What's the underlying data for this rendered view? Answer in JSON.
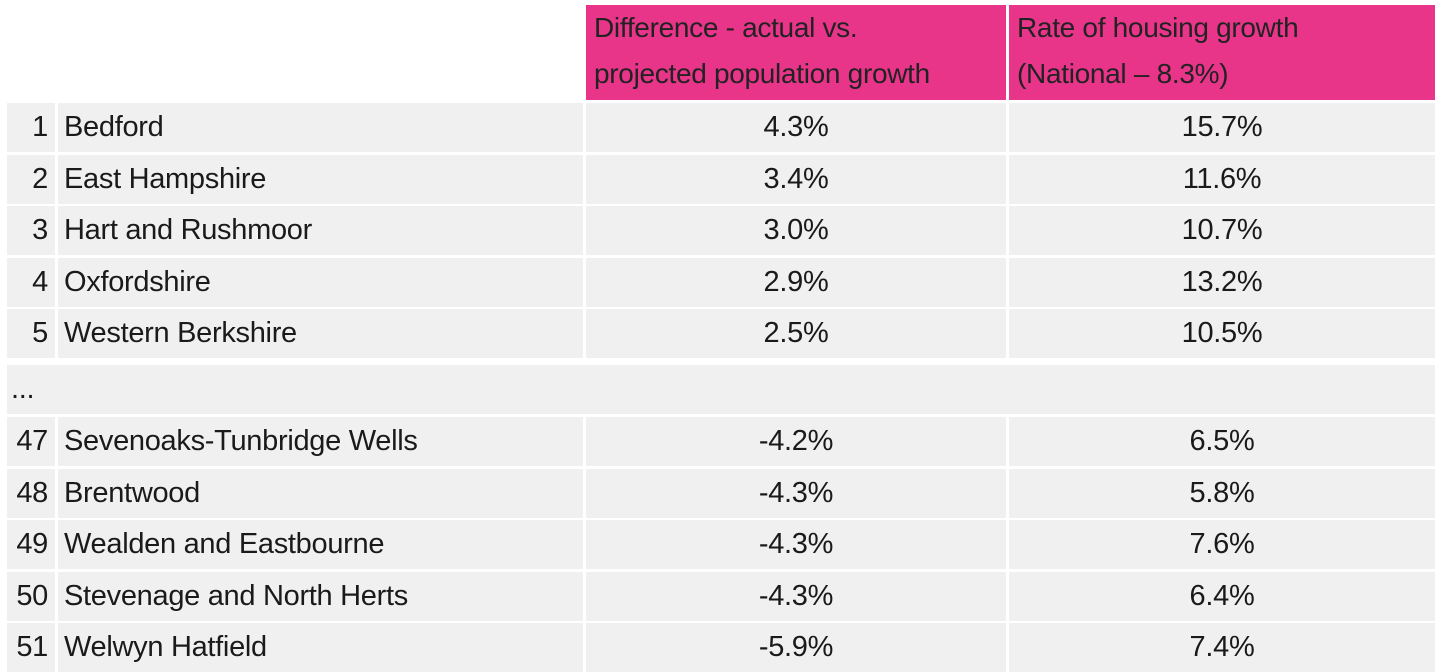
{
  "headers": {
    "difference_line1": "Difference - actual vs.",
    "difference_line2": "projected population growth",
    "rate_line1": "Rate of housing growth",
    "rate_line2": "(National – 8.3%)"
  },
  "rows_top": [
    {
      "rank": "1",
      "name": "Bedford",
      "difference": "4.3%",
      "rate": "15.7%"
    },
    {
      "rank": "2",
      "name": "East Hampshire",
      "difference": "3.4%",
      "rate": "11.6%"
    },
    {
      "rank": "3",
      "name": "Hart and Rushmoor",
      "difference": "3.0%",
      "rate": "10.7%"
    },
    {
      "rank": "4",
      "name": "Oxfordshire",
      "difference": "2.9%",
      "rate": "13.2%"
    },
    {
      "rank": "5",
      "name": "Western Berkshire",
      "difference": "2.5%",
      "rate": "10.5%"
    }
  ],
  "ellipsis": "...",
  "rows_bottom": [
    {
      "rank": "47",
      "name": "Sevenoaks-Tunbridge Wells",
      "difference": "-4.2%",
      "rate": "6.5%"
    },
    {
      "rank": "48",
      "name": "Brentwood",
      "difference": "-4.3%",
      "rate": "5.8%"
    },
    {
      "rank": "49",
      "name": "Wealden and Eastbourne",
      "difference": "-4.3%",
      "rate": "7.6%"
    },
    {
      "rank": "50",
      "name": "Stevenage and North Herts",
      "difference": "-4.3%",
      "rate": "6.4%"
    },
    {
      "rank": "51",
      "name": "Welwyn Hatfield",
      "difference": "-5.9%",
      "rate": "7.4%"
    }
  ],
  "colors": {
    "header_bg": "#e8358a",
    "cell_bg": "#f0f0f0"
  }
}
